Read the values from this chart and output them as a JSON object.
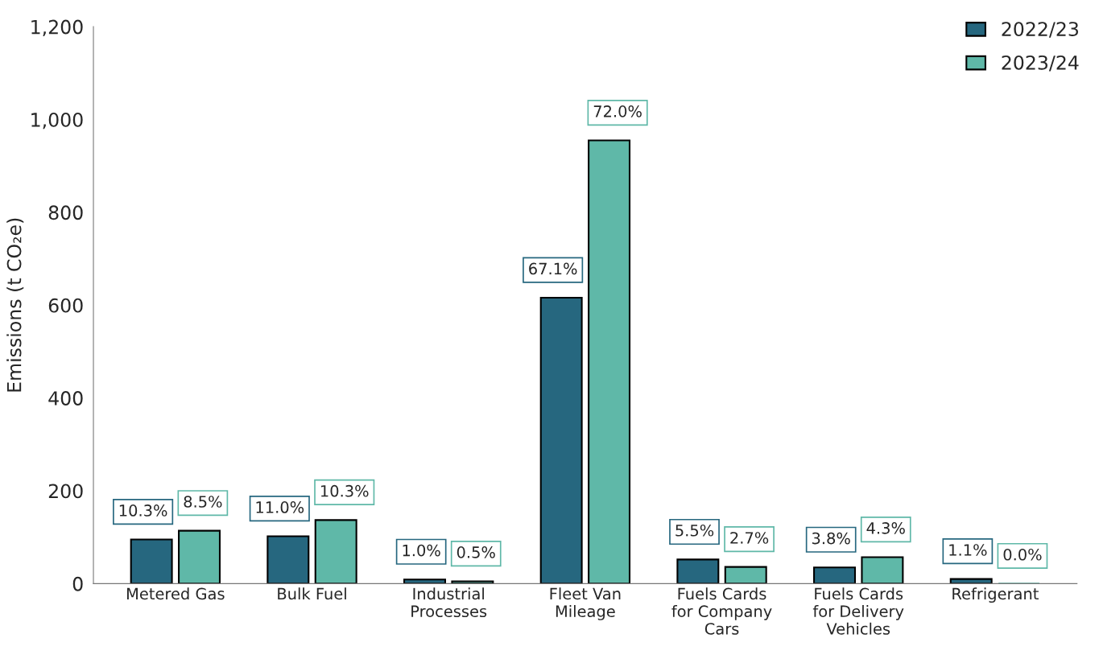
{
  "chart_data": {
    "type": "bar",
    "ylabel": "Emissions (t CO₂e)",
    "categories": [
      "Metered Gas",
      "Bulk Fuel",
      "Industrial\nProcesses",
      "Fleet Van\nMileage",
      "Fuels Cards\nfor Company\nCars",
      "Fuels Cards\nfor Delivery\nVehicles",
      "Refrigerant"
    ],
    "series": [
      {
        "name": "2022/23",
        "color": "#26677f",
        "values": [
          95,
          102,
          9,
          616,
          52,
          35,
          10
        ]
      },
      {
        "name": "2023/24",
        "color": "#5fb8a8",
        "values": [
          114,
          137,
          5,
          955,
          36,
          57,
          0
        ]
      }
    ],
    "annotations": [
      {
        "text": "10.3%",
        "x": "Metered Gas",
        "y": 95
      },
      {
        "text": "8.5%",
        "x": "Metered Gas",
        "y": 114
      },
      {
        "text": "11.0%",
        "x": "Bulk Fuel",
        "y": 102
      },
      {
        "text": "10.3%",
        "x": "Bulk Fuel",
        "y": 137
      },
      {
        "text": "1.0%",
        "x": "Industrial\nProcesses",
        "y": 9
      },
      {
        "text": "0.5%",
        "x": "Industrial\nProcesses",
        "y": 5
      },
      {
        "text": "67.1%",
        "x": "Fleet Van\nMileage",
        "y": 616
      },
      {
        "text": "72.0%",
        "x": "Fleet Van\nMileage",
        "y": 955
      },
      {
        "text": "5.5%",
        "x": "Fuels Cards\nfor Company\nCars",
        "y": 52
      },
      {
        "text": "2.7%",
        "x": "Fuels Cards\nfor Company\nCars",
        "y": 36
      },
      {
        "text": "3.8%",
        "x": "Fuels Cards\nfor Delivery\nVehicles",
        "y": 35
      },
      {
        "text": "4.3%",
        "x": "Fuels Cards\nfor Delivery\nVehicles",
        "y": 57
      },
      {
        "text": "1.1%",
        "x": "Refrigerant",
        "y": 10
      },
      {
        "text": "0.0%",
        "x": "Refrigerant",
        "y": 0
      }
    ],
    "ylim": [
      0,
      1200
    ],
    "yticks": [
      0,
      200,
      400,
      600,
      800,
      {
        "value": 1000,
        "label": "1,000"
      },
      {
        "value": 1200,
        "label": "1,200"
      }
    ],
    "grid": false,
    "legend": "top right"
  }
}
